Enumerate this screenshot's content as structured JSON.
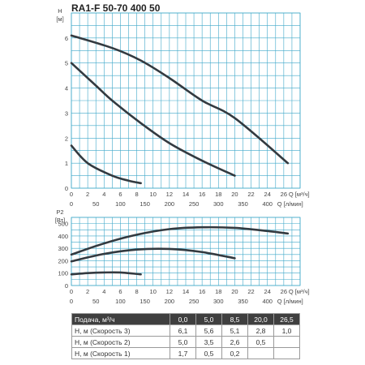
{
  "title": "RA1-F 50-70 400 50",
  "chart_data": [
    {
      "type": "line",
      "title": "RA1-F 50-70 400 50",
      "ylabel_top": "H",
      "ylabel_unit": "[м]",
      "x_unit_primary": "Q [м³/ч]",
      "x_unit_secondary": "Q [л/мин]",
      "xlim": [
        0,
        28
      ],
      "ylim": [
        0,
        7
      ],
      "x_ticks": [
        0,
        2,
        4,
        6,
        8,
        10,
        12,
        14,
        16,
        18,
        20,
        22,
        24,
        26
      ],
      "x_tick_labels": [
        "0",
        "2",
        "4",
        "6",
        "8",
        "10",
        "12",
        "14",
        "16",
        "18",
        "20",
        "22",
        "24",
        "26"
      ],
      "y_ticks": [
        0,
        1,
        2,
        3,
        4,
        5,
        6
      ],
      "y_tick_labels": [
        "0",
        "1",
        "2",
        "3",
        "4",
        "5",
        "6"
      ],
      "x2_ticks_lpm": [
        0,
        50,
        100,
        150,
        200,
        250,
        300,
        350,
        400
      ],
      "x2_tick_labels": [
        "0",
        "50",
        "100",
        "150",
        "200",
        "250",
        "300",
        "350",
        "400"
      ],
      "grid": true,
      "series": [
        {
          "x": [
            0,
            5,
            8.5,
            12,
            16,
            20,
            26.5
          ],
          "y": [
            6.1,
            5.6,
            5.1,
            4.4,
            3.5,
            2.8,
            1.0
          ]
        },
        {
          "x": [
            0,
            3,
            5,
            8.5,
            12,
            16,
            20
          ],
          "y": [
            5.0,
            4.1,
            3.5,
            2.6,
            1.8,
            1.1,
            0.5
          ]
        },
        {
          "x": [
            0,
            2,
            5,
            7,
            8.5
          ],
          "y": [
            1.7,
            1.0,
            0.5,
            0.3,
            0.2
          ]
        }
      ]
    },
    {
      "type": "line",
      "ylabel_top": "P2",
      "ylabel_unit": "[Вт]",
      "x_unit_primary": "Q [м³/ч]",
      "x_unit_secondary": "Q [л/мин]",
      "xlim": [
        0,
        28
      ],
      "ylim": [
        0,
        550
      ],
      "x_ticks": [
        0,
        2,
        4,
        6,
        8,
        10,
        12,
        14,
        16,
        18,
        20,
        22,
        24,
        26
      ],
      "x_tick_labels": [
        "0",
        "2",
        "4",
        "6",
        "8",
        "10",
        "12",
        "14",
        "16",
        "18",
        "20",
        "22",
        "24",
        "26"
      ],
      "y_ticks": [
        0,
        100,
        200,
        300,
        400,
        500
      ],
      "y_tick_labels": [
        "0",
        "100",
        "200",
        "300",
        "400",
        "500"
      ],
      "x2_ticks_lpm": [
        0,
        50,
        100,
        150,
        200,
        250,
        300,
        350,
        400
      ],
      "x2_tick_labels": [
        "0",
        "50",
        "100",
        "150",
        "200",
        "250",
        "300",
        "350",
        "400"
      ],
      "grid": true,
      "series": [
        {
          "x": [
            0,
            4,
            8,
            12,
            16,
            20,
            24,
            26.5
          ],
          "y": [
            250,
            340,
            410,
            455,
            470,
            465,
            440,
            420
          ]
        },
        {
          "x": [
            0,
            4,
            8,
            12,
            16,
            20
          ],
          "y": [
            195,
            255,
            290,
            295,
            270,
            220
          ]
        },
        {
          "x": [
            0,
            2,
            4,
            6,
            8.5
          ],
          "y": [
            90,
            100,
            105,
            105,
            90
          ]
        }
      ]
    },
    {
      "type": "table",
      "header": [
        "Подача, м³/ч",
        "0,0",
        "5,0",
        "8,5",
        "20,0",
        "26,5"
      ],
      "rows": [
        [
          "H, м (Скорость 3)",
          "6,1",
          "5,6",
          "5,1",
          "2,8",
          "1,0"
        ],
        [
          "H, м (Скорость 2)",
          "5,0",
          "3,5",
          "2,6",
          "0,5",
          ""
        ],
        [
          "H, м (Скорость 1)",
          "1,7",
          "0,5",
          "0,2",
          "",
          ""
        ]
      ]
    }
  ],
  "colors": {
    "grid": "#3fa8c9",
    "curve": "#333a40",
    "table_header_bg": "#3f3f3f"
  }
}
